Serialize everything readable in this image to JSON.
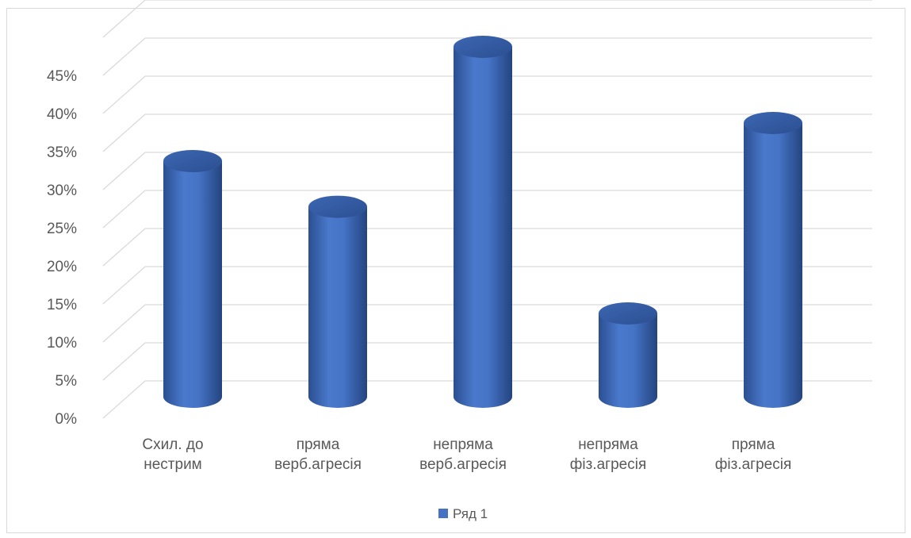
{
  "chart_data": {
    "type": "bar",
    "style": "3d-cylinder",
    "categories": [
      [
        "Схил. до",
        "нестрим"
      ],
      [
        "пряма",
        "верб.агресія"
      ],
      [
        "непряма",
        "верб.агресія"
      ],
      [
        "непряма",
        "фіз.агресія"
      ],
      [
        "пряма",
        "фіз.агресія"
      ]
    ],
    "series": [
      {
        "name": "Ряд 1",
        "values": [
          0.3,
          0.24,
          0.45,
          0.1,
          0.35
        ],
        "color": "#4472c4"
      }
    ],
    "y_ticks": [
      "0%",
      "5%",
      "10%",
      "15%",
      "20%",
      "25%",
      "30%",
      "35%",
      "40%",
      "45%"
    ],
    "ylim": [
      0,
      0.5
    ],
    "grid": true,
    "legend_position": "bottom"
  },
  "legend": {
    "label": "Ряд 1"
  }
}
